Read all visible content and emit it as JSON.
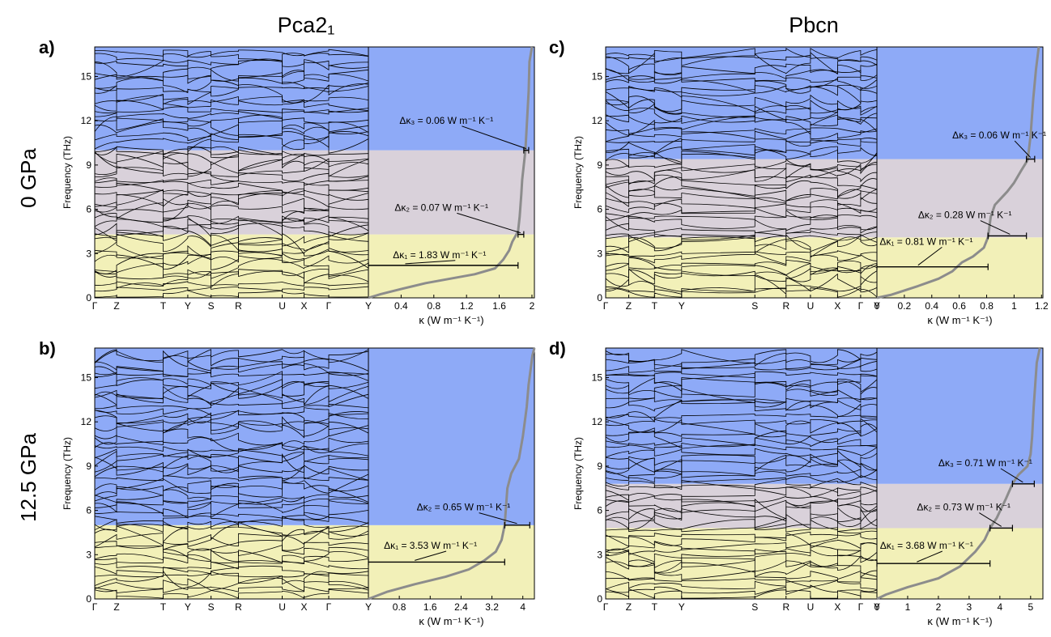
{
  "column_titles": [
    "Pca2₁",
    "Pbcn"
  ],
  "row_titles": [
    "0 GPa",
    "12.5 GPa"
  ],
  "colors": {
    "band_low": "#f2f0b8",
    "band_mid": "#d9d1da",
    "band_high": "#8eaaf7",
    "dispersion": "#000000",
    "cumulative": "#8c8c8c",
    "axis": "#000000"
  },
  "chart_data": [
    {
      "type": "line",
      "panel": "a)",
      "title": "Pca2₁",
      "row_label": "0 GPa",
      "ylabel": "Frequency (THz)",
      "ylim": [
        0,
        17
      ],
      "yticks": [
        0,
        3,
        6,
        9,
        12,
        15
      ],
      "kpath": [
        "Γ",
        "Z",
        "T",
        "Y",
        "S",
        "R",
        "U",
        "X",
        "Γ",
        "Y"
      ],
      "kpos": [
        0,
        0.08,
        0.25,
        0.34,
        0.425,
        0.525,
        0.685,
        0.765,
        0.855,
        1.0
      ],
      "xlabel": "κ (W m⁻¹ K⁻¹)",
      "xlim": [
        0,
        2.03
      ],
      "xticks": [
        "0.4",
        "0.8",
        "1.2",
        "1.6",
        "2"
      ],
      "xtick_values": [
        0.4,
        0.8,
        1.2,
        1.6,
        2.0
      ],
      "regions": [
        {
          "color": "band_low",
          "from": 0,
          "to": 4.3
        },
        {
          "color": "band_mid",
          "from": 4.3,
          "to": 10.0
        },
        {
          "color": "band_high",
          "from": 10.0,
          "to": 17
        }
      ],
      "kappa_x": [
        0.0,
        0.15,
        0.4,
        0.7,
        1.0,
        1.3,
        1.55,
        1.65,
        1.72,
        1.76,
        1.8,
        1.83,
        1.85,
        1.87,
        1.88,
        1.9,
        1.92,
        1.94,
        1.96,
        1.97,
        2.0
      ],
      "kappa_y": [
        0.0,
        0.25,
        0.6,
        1.0,
        1.3,
        1.6,
        2.0,
        2.6,
        3.2,
        3.8,
        4.2,
        4.5,
        5.5,
        7.0,
        8.0,
        9.0,
        10.0,
        12.0,
        14.0,
        16.0,
        17.0
      ],
      "segments": [
        {
          "label": "Δκ₁ = 1.83 W m⁻¹ K⁻¹",
          "from": 0,
          "to": 1.83,
          "y": 2.2,
          "lx": 0.3,
          "ly": 2.7,
          "pointer": 0.45,
          "pointer_y": 2.2
        },
        {
          "label": "Δκ₂ = 0.07 W m⁻¹ K⁻¹",
          "from": 1.83,
          "to": 1.9,
          "y": 4.3,
          "lx": 0.32,
          "ly": 5.9,
          "pointer": 1.86,
          "pointer_y": 4.3
        },
        {
          "label": "Δκ₃ = 0.06 W m⁻¹ K⁻¹",
          "from": 1.9,
          "to": 1.96,
          "y": 10.0,
          "lx": 0.38,
          "ly": 11.8,
          "pointer": 1.93,
          "pointer_y": 10.0
        }
      ]
    },
    {
      "type": "line",
      "panel": "b)",
      "title": "",
      "row_label": "12.5 GPa",
      "ylabel": "Frequency (THz)",
      "ylim": [
        0,
        17
      ],
      "yticks": [
        0,
        3,
        6,
        9,
        12,
        15
      ],
      "kpath": [
        "Γ",
        "Z",
        "T",
        "Y",
        "S",
        "R",
        "U",
        "X",
        "Γ",
        "Y"
      ],
      "kpos": [
        0,
        0.08,
        0.25,
        0.34,
        0.425,
        0.525,
        0.685,
        0.765,
        0.855,
        1.0
      ],
      "xlabel": "κ (W m⁻¹ K⁻¹)",
      "xlim": [
        0,
        4.3
      ],
      "xticks": [
        "0.8",
        "1.6",
        "2.4",
        "3.2",
        "4"
      ],
      "xtick_values": [
        0.8,
        1.6,
        2.4,
        3.2,
        4.0
      ],
      "regions": [
        {
          "color": "band_low",
          "from": 0,
          "to": 5.0
        },
        {
          "color": "band_high",
          "from": 5.0,
          "to": 17
        }
      ],
      "kappa_x": [
        0.0,
        0.5,
        1.2,
        2.0,
        2.6,
        3.0,
        3.3,
        3.45,
        3.53,
        3.6,
        3.7,
        3.9,
        4.0,
        4.05,
        4.1,
        4.15,
        4.2,
        4.25,
        4.3
      ],
      "kappa_y": [
        0.0,
        0.5,
        1.0,
        1.5,
        2.0,
        2.6,
        3.2,
        4.0,
        5.0,
        7.5,
        8.5,
        9.5,
        11.0,
        12.0,
        13.0,
        14.5,
        15.5,
        16.5,
        17.0
      ],
      "segments": [
        {
          "label": "Δκ₁ = 3.53 W m⁻¹ K⁻¹",
          "from": 0,
          "to": 3.53,
          "y": 2.5,
          "lx": 0.4,
          "ly": 3.4,
          "pointer": 1.2,
          "pointer_y": 2.5
        },
        {
          "label": "Δκ₂ = 0.65 W m⁻¹ K⁻¹",
          "from": 3.53,
          "to": 4.18,
          "y": 5.0,
          "lx": 1.25,
          "ly": 6.0,
          "pointer": 3.85,
          "pointer_y": 5.0
        }
      ]
    },
    {
      "type": "line",
      "panel": "c)",
      "title": "Pbcn",
      "row_label": "",
      "ylabel": "Frequency (THz)",
      "ylim": [
        0,
        17
      ],
      "yticks": [
        0,
        3,
        6,
        9,
        12,
        15
      ],
      "kpath": [
        "Γ",
        "Z",
        "T",
        "Y",
        "S",
        "R",
        "U",
        "X",
        "Γ",
        "Y"
      ],
      "kpos": [
        0,
        0.085,
        0.18,
        0.28,
        0.55,
        0.665,
        0.755,
        0.855,
        0.94,
        1.0
      ],
      "xlabel": "κ (W m⁻¹ K⁻¹)",
      "xlim": [
        0,
        1.21
      ],
      "xticks": [
        "0",
        "0.2",
        "0.4",
        "0.6",
        "0.8",
        "1",
        "1.2"
      ],
      "xtick_values": [
        0,
        0.2,
        0.4,
        0.6,
        0.8,
        1.0,
        1.2
      ],
      "regions": [
        {
          "color": "band_low",
          "from": 0,
          "to": 4.1
        },
        {
          "color": "band_mid",
          "from": 4.1,
          "to": 9.4
        },
        {
          "color": "band_high",
          "from": 9.4,
          "to": 17
        }
      ],
      "kappa_x": [
        0.0,
        0.1,
        0.3,
        0.45,
        0.55,
        0.62,
        0.7,
        0.78,
        0.81,
        0.83,
        0.86,
        0.9,
        0.95,
        1.0,
        1.05,
        1.09,
        1.1,
        1.12,
        1.14,
        1.16,
        1.18
      ],
      "kappa_y": [
        0.0,
        0.2,
        0.8,
        1.3,
        1.8,
        2.4,
        2.8,
        3.4,
        4.1,
        5.5,
        6.3,
        6.7,
        7.2,
        7.8,
        8.6,
        9.2,
        9.4,
        11.0,
        13.5,
        15.5,
        17.0
      ],
      "segments": [
        {
          "label": "Δκ₁ = 0.81 W m⁻¹ K⁻¹",
          "from": 0,
          "to": 0.81,
          "y": 2.1,
          "lx": 0.02,
          "ly": 3.6,
          "pointer": 0.3,
          "pointer_y": 2.1
        },
        {
          "label": "Δκ₂ = 0.28 W m⁻¹ K⁻¹",
          "from": 0.81,
          "to": 1.09,
          "y": 4.2,
          "lx": 0.3,
          "ly": 5.4,
          "pointer": 0.97,
          "pointer_y": 4.2
        },
        {
          "label": "Δκ₃ = 0.06 W m⁻¹ K⁻¹",
          "from": 1.09,
          "to": 1.15,
          "y": 9.4,
          "lx": 0.55,
          "ly": 10.8,
          "pointer": 1.12,
          "pointer_y": 9.4
        }
      ]
    },
    {
      "type": "line",
      "panel": "d)",
      "title": "",
      "row_label": "",
      "ylabel": "Frequency (THz)",
      "ylim": [
        0,
        17
      ],
      "yticks": [
        0,
        3,
        6,
        9,
        12,
        15
      ],
      "kpath": [
        "Γ",
        "Z",
        "T",
        "Y",
        "S",
        "R",
        "U",
        "X",
        "Γ",
        "Y"
      ],
      "kpos": [
        0,
        0.085,
        0.18,
        0.28,
        0.55,
        0.665,
        0.755,
        0.855,
        0.94,
        1.0
      ],
      "xlabel": "κ (W m⁻¹ K⁻¹)",
      "xlim": [
        0,
        5.4
      ],
      "xticks": [
        "0",
        "1",
        "2",
        "3",
        "4",
        "5"
      ],
      "xtick_values": [
        0,
        1,
        2,
        3,
        4,
        5
      ],
      "regions": [
        {
          "color": "band_low",
          "from": 0,
          "to": 4.8
        },
        {
          "color": "band_mid",
          "from": 4.8,
          "to": 7.8
        },
        {
          "color": "band_high",
          "from": 7.8,
          "to": 17
        }
      ],
      "kappa_x": [
        0.0,
        0.3,
        1.0,
        2.0,
        2.7,
        3.2,
        3.5,
        3.68,
        3.9,
        4.2,
        4.41,
        4.6,
        4.9,
        5.0,
        5.05,
        5.1,
        5.15,
        5.2,
        5.3
      ],
      "kappa_y": [
        0.0,
        0.3,
        0.8,
        1.4,
        2.2,
        3.2,
        4.0,
        4.8,
        5.5,
        6.8,
        7.8,
        8.4,
        9.0,
        9.8,
        11.0,
        13.0,
        14.5,
        16.0,
        17.0
      ],
      "segments": [
        {
          "label": "Δκ₁ = 3.68 W m⁻¹ K⁻¹",
          "from": 0,
          "to": 3.68,
          "y": 2.4,
          "lx": 0.1,
          "ly": 3.4,
          "pointer": 1.3,
          "pointer_y": 2.4
        },
        {
          "label": "Δκ₂ = 0.73 W m⁻¹ K⁻¹",
          "from": 3.68,
          "to": 4.41,
          "y": 4.8,
          "lx": 1.3,
          "ly": 6.0,
          "pointer": 4.05,
          "pointer_y": 4.8
        },
        {
          "label": "Δκ₃ = 0.71 W m⁻¹ K⁻¹",
          "from": 4.41,
          "to": 5.12,
          "y": 7.8,
          "lx": 2.0,
          "ly": 9.0,
          "pointer": 4.75,
          "pointer_y": 7.8
        }
      ]
    }
  ]
}
